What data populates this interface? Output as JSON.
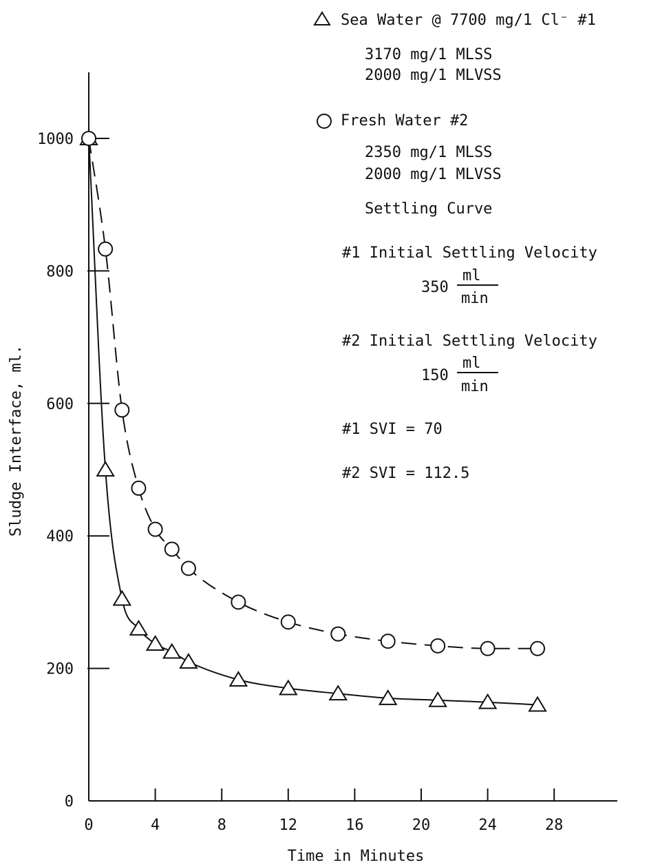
{
  "chart_data": {
    "type": "line",
    "title": "",
    "xlabel": "Time in Minutes",
    "ylabel": "Sludge Interface, ml.",
    "xlim": [
      0,
      32
    ],
    "ylim": [
      0,
      1100
    ],
    "x_ticks": [
      0,
      4,
      8,
      12,
      16,
      20,
      24,
      28
    ],
    "y_ticks": [
      0,
      200,
      400,
      600,
      800,
      1000
    ],
    "grid": false,
    "series": [
      {
        "name": "Sea Water @ 7700 mg/1 Cl⁻ #1",
        "marker": "triangle",
        "line_style": "solid",
        "x": [
          0,
          1,
          2,
          3,
          4,
          5,
          6,
          9,
          12,
          15,
          18,
          21,
          24,
          27
        ],
        "y": [
          1000,
          500,
          305,
          260,
          237,
          225,
          210,
          183,
          170,
          162,
          155,
          152,
          149,
          145
        ]
      },
      {
        "name": "Fresh Water #2",
        "marker": "circle",
        "line_style": "dashed",
        "x": [
          0,
          1,
          2,
          3,
          4,
          5,
          6,
          9,
          12,
          15,
          18,
          21,
          24,
          27
        ],
        "y": [
          1000,
          833,
          590,
          472,
          410,
          380,
          351,
          300,
          270,
          252,
          241,
          234,
          230,
          230
        ]
      }
    ]
  },
  "legend": {
    "sea_label": "Sea Water @ 7700 mg/1 Cl⁻ #1",
    "sea_mlss": "3170 mg/1 MLSS",
    "sea_mlvss": "2000 mg/1 MLVSS",
    "fresh_label": "Fresh Water #2",
    "fresh_mlss": "2350 mg/1 MLSS",
    "fresh_mlvss": "2000 mg/1 MLVSS",
    "settling_curve": "Settling Curve",
    "v1_label": "#1 Initial Settling Velocity",
    "v1_value": "350",
    "v2_label": "#2 Initial Settling Velocity",
    "v2_value": "150",
    "unit_num": "ml",
    "unit_den": "min",
    "svi1": "#1 SVI = 70",
    "svi2": "#2 SVI = 112.5"
  }
}
